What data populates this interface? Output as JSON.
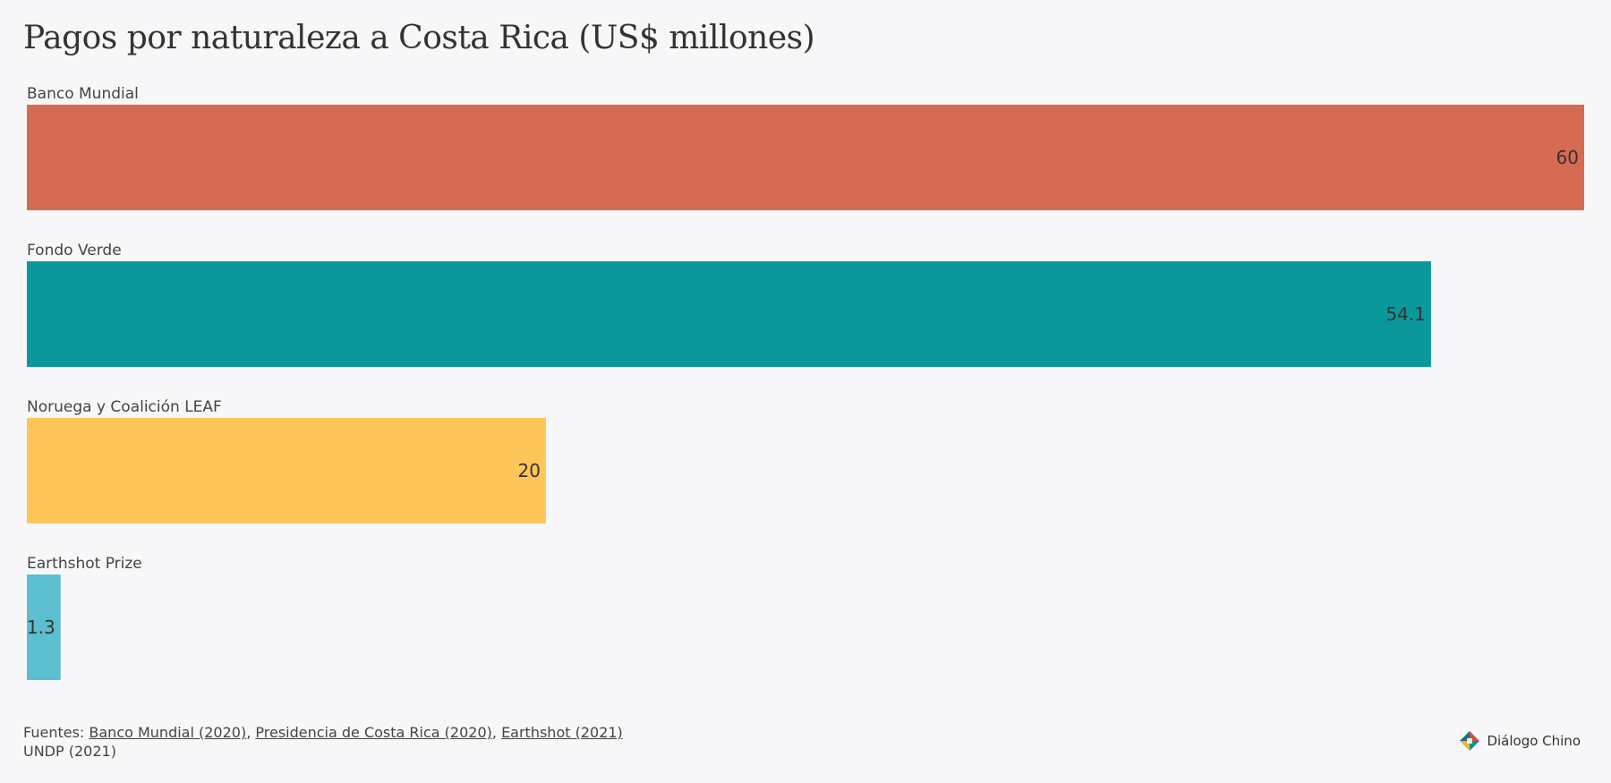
{
  "title": "Pagos por naturaleza a Costa Rica (US$ millones)",
  "chart_data": {
    "type": "bar",
    "orientation": "horizontal",
    "title": "Pagos por naturaleza a Costa Rica (US$ millones)",
    "categories": [
      "Banco Mundial",
      "Fondo Verde",
      "Noruega y Coalición LEAF",
      "Earthshot Prize"
    ],
    "values": [
      60,
      54.1,
      20,
      1.3
    ],
    "value_labels": [
      "60",
      "54.1",
      "20",
      "1.3"
    ],
    "colors": [
      "#d66b53",
      "#0b989c",
      "#fec558",
      "#5bbfcf"
    ],
    "xlim": [
      0,
      60
    ],
    "grid": false,
    "legend": "none"
  },
  "footer": {
    "prefix": "Fuentes: ",
    "sources": [
      "Banco Mundial (2020)",
      "Presidencia de Costa Rica (2020)",
      "Earthshot (2021)"
    ],
    "separator": ", ",
    "tail": "UNDP (2021)"
  },
  "brand": {
    "name": "Diálogo Chino",
    "logo_icon": "dialogo-chino-logo-icon",
    "colors": [
      "#c8553d",
      "#0b8f8f",
      "#f2b33d",
      "#1d6f7a"
    ]
  }
}
